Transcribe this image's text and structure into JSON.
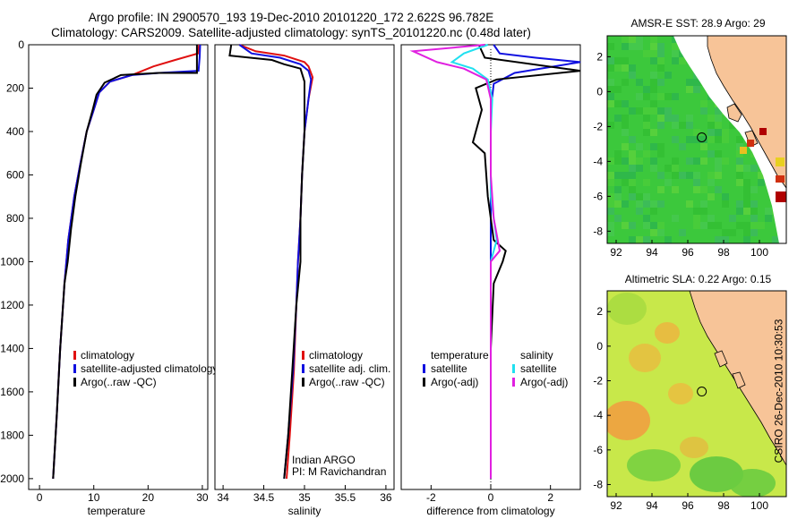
{
  "figure": {
    "title_line1": "Argo profile: IN 2900570_193 19-Dec-2010 20101220_172 2.622S 96.782E",
    "title_line2": "Climatology: CARS2009. Satellite-adjusted climatology: synTS_20101220.nc (0.48d later)",
    "stamp": "CSIRO 26-Dec-2010 10:30:53"
  },
  "colors": {
    "climatology": "#e01010",
    "satellite": "#1010e0",
    "argo": "#000000",
    "salinity_satellite": "#20e0f0",
    "salinity_argo": "#e020e0",
    "land": "#f7c498",
    "sst_sea": "#3cc83c",
    "sla_sea": "#c8e84a"
  },
  "panels": {
    "temperature": {
      "xlabel": "temperature",
      "legend": [
        "climatology",
        "satellite-adjusted climatology",
        "Argo(..raw -QC)"
      ]
    },
    "salinity": {
      "xlabel": "salinity",
      "legend": [
        "climatology",
        "satellite adj. clim.",
        "Argo(..raw -QC)"
      ],
      "note_line1": "Indian ARGO",
      "note_line2": "PI: M Ravichandran"
    },
    "difference": {
      "xlabel": "difference from climatology",
      "legend_temp_header": "temperature",
      "legend_sal_header": "salinity",
      "legend_temp": [
        "satellite",
        "Argo(-adj)"
      ],
      "legend_sal": [
        "satellite",
        "Argo(-adj)"
      ]
    },
    "sst_map": {
      "title": "AMSR-E SST: 28.9 Argo: 29"
    },
    "sla_map": {
      "title": "Altimetric SLA: 0.22 Argo: 0.15"
    }
  },
  "chart_data": [
    {
      "type": "line",
      "name": "temperature profile",
      "xlabel": "temperature",
      "ylabel": "",
      "xlim": [
        -2,
        31
      ],
      "ylim": [
        2050,
        0
      ],
      "xticks": [
        0,
        10,
        20,
        30
      ],
      "yticks": [
        0,
        200,
        400,
        600,
        800,
        1000,
        1200,
        1400,
        1600,
        1800,
        2000
      ],
      "series": [
        {
          "name": "climatology",
          "points": [
            [
              29.4,
              0
            ],
            [
              29.2,
              40
            ],
            [
              25,
              70
            ],
            [
              21,
              100
            ],
            [
              17,
              140
            ],
            [
              13,
              170
            ],
            [
              11,
              220
            ],
            [
              10,
              300
            ],
            [
              8.7,
              400
            ],
            [
              7.5,
              550
            ],
            [
              6.4,
              700
            ],
            [
              5.3,
              900
            ],
            [
              4.6,
              1100
            ],
            [
              3.8,
              1400
            ],
            [
              3.2,
              1700
            ],
            [
              2.5,
              2000
            ]
          ]
        },
        {
          "name": "satellite-adjusted climatology",
          "points": [
            [
              29.6,
              0
            ],
            [
              29.5,
              60
            ],
            [
              29.3,
              120
            ],
            [
              22,
              130
            ],
            [
              17,
              140
            ],
            [
              13,
              170
            ],
            [
              11,
              220
            ],
            [
              10,
              300
            ],
            [
              8.7,
              400
            ],
            [
              7.5,
              550
            ],
            [
              6.4,
              700
            ],
            [
              5.3,
              900
            ],
            [
              4.6,
              1100
            ],
            [
              3.8,
              1400
            ],
            [
              3.2,
              1700
            ],
            [
              2.5,
              2000
            ]
          ]
        },
        {
          "name": "Argo(..raw -QC)",
          "points": [
            [
              29.0,
              0
            ],
            [
              29.0,
              130
            ],
            [
              22,
              130
            ],
            [
              15,
              140
            ],
            [
              12,
              175
            ],
            [
              10.5,
              230
            ],
            [
              9.8,
              300
            ],
            [
              8.7,
              400
            ],
            [
              7.6,
              550
            ],
            [
              6.6,
              700
            ],
            [
              5.8,
              850
            ],
            [
              5.2,
              1000
            ],
            [
              4.6,
              1100
            ],
            [
              3.8,
              1400
            ],
            [
              3.2,
              1700
            ],
            [
              2.5,
              2000
            ]
          ]
        }
      ]
    },
    {
      "type": "line",
      "name": "salinity profile",
      "xlabel": "salinity",
      "xlim": [
        33.9,
        36.1
      ],
      "ylim": [
        2050,
        0
      ],
      "xticks": [
        34,
        34.5,
        35,
        35.5,
        36
      ],
      "series": [
        {
          "name": "climatology",
          "points": [
            [
              34.2,
              0
            ],
            [
              34.4,
              30
            ],
            [
              34.75,
              50
            ],
            [
              35.0,
              80
            ],
            [
              35.05,
              100
            ],
            [
              35.1,
              150
            ],
            [
              35.05,
              250
            ],
            [
              35.0,
              400
            ],
            [
              34.97,
              600
            ],
            [
              34.95,
              800
            ],
            [
              34.92,
              1000
            ],
            [
              34.9,
              1200
            ],
            [
              34.87,
              1500
            ],
            [
              34.82,
              1800
            ],
            [
              34.78,
              2000
            ]
          ]
        },
        {
          "name": "satellite adj. clim.",
          "points": [
            [
              34.2,
              0
            ],
            [
              34.35,
              40
            ],
            [
              34.7,
              60
            ],
            [
              34.95,
              90
            ],
            [
              35.05,
              120
            ],
            [
              35.08,
              160
            ],
            [
              35.05,
              250
            ],
            [
              35.0,
              400
            ],
            [
              34.97,
              600
            ],
            [
              34.95,
              800
            ],
            [
              34.92,
              1000
            ],
            [
              34.9,
              1200
            ],
            [
              34.86,
              1500
            ],
            [
              34.8,
              1800
            ],
            [
              34.75,
              2000
            ]
          ]
        },
        {
          "name": "Argo(..raw -QC)",
          "points": [
            [
              34.1,
              0
            ],
            [
              34.08,
              50
            ],
            [
              34.6,
              70
            ],
            [
              34.75,
              90
            ],
            [
              34.95,
              110
            ],
            [
              35.0,
              170
            ],
            [
              35.0,
              200
            ],
            [
              35.0,
              400
            ],
            [
              34.97,
              600
            ],
            [
              34.95,
              800
            ],
            [
              34.95,
              1000
            ],
            [
              34.9,
              1200
            ],
            [
              34.85,
              1500
            ],
            [
              34.8,
              1800
            ],
            [
              34.75,
              2000
            ]
          ]
        }
      ]
    },
    {
      "type": "line",
      "name": "difference from climatology",
      "xlabel": "difference from climatology",
      "xlim": [
        -3,
        3
      ],
      "ylim": [
        2050,
        0
      ],
      "xticks": [
        -2,
        0,
        2
      ],
      "series": [
        {
          "name": "temperature satellite",
          "points": [
            [
              0.1,
              0
            ],
            [
              0.3,
              40
            ],
            [
              1.5,
              60
            ],
            [
              3.0,
              80
            ],
            [
              0.8,
              130
            ],
            [
              0.1,
              180
            ],
            [
              0,
              300
            ],
            [
              0,
              2000
            ]
          ]
        },
        {
          "name": "temperature Argo(-adj)",
          "points": [
            [
              -0.4,
              0
            ],
            [
              -0.2,
              60
            ],
            [
              3.0,
              120
            ],
            [
              0.2,
              160
            ],
            [
              -0.5,
              200
            ],
            [
              -0.3,
              300
            ],
            [
              -0.6,
              450
            ],
            [
              -0.2,
              500
            ],
            [
              -0.1,
              700
            ],
            [
              0.1,
              900
            ],
            [
              0.5,
              950
            ],
            [
              0.4,
              1000
            ],
            [
              0.1,
              1100
            ],
            [
              0,
              1400
            ],
            [
              0,
              2000
            ]
          ]
        },
        {
          "name": "salinity satellite",
          "points": [
            [
              -0.1,
              0
            ],
            [
              -0.9,
              40
            ],
            [
              -1.3,
              80
            ],
            [
              -0.6,
              110
            ],
            [
              -0.1,
              160
            ],
            [
              0.05,
              250
            ],
            [
              0,
              400
            ],
            [
              0,
              700
            ],
            [
              0.2,
              900
            ],
            [
              0,
              1000
            ],
            [
              0,
              2000
            ]
          ]
        },
        {
          "name": "salinity Argo(-adj)",
          "points": [
            [
              -0.2,
              0
            ],
            [
              -2.6,
              30
            ],
            [
              -1.8,
              80
            ],
            [
              -0.9,
              110
            ],
            [
              -0.15,
              160
            ],
            [
              0,
              250
            ],
            [
              0,
              600
            ],
            [
              0.1,
              800
            ],
            [
              0.3,
              950
            ],
            [
              0,
              1000
            ],
            [
              0,
              2000
            ]
          ]
        }
      ]
    },
    {
      "type": "heatmap",
      "name": "sst map",
      "title": "AMSR-E SST: 28.9 Argo: 29",
      "xlim": [
        91.5,
        101.5
      ],
      "ylim": [
        -8.7,
        3.2
      ],
      "xticks": [
        92,
        94,
        96,
        98,
        100
      ],
      "yticks": [
        -8,
        -6,
        -4,
        -2,
        0,
        2
      ],
      "argo_position": [
        96.782,
        -2.622
      ]
    },
    {
      "type": "heatmap",
      "name": "sla map",
      "title": "Altimetric SLA: 0.22 Argo: 0.15",
      "xlim": [
        91.5,
        101.5
      ],
      "ylim": [
        -8.7,
        3.2
      ],
      "xticks": [
        92,
        94,
        96,
        98,
        100
      ],
      "yticks": [
        -8,
        -6,
        -4,
        -2,
        0,
        2
      ],
      "argo_position": [
        96.782,
        -2.622
      ]
    }
  ]
}
